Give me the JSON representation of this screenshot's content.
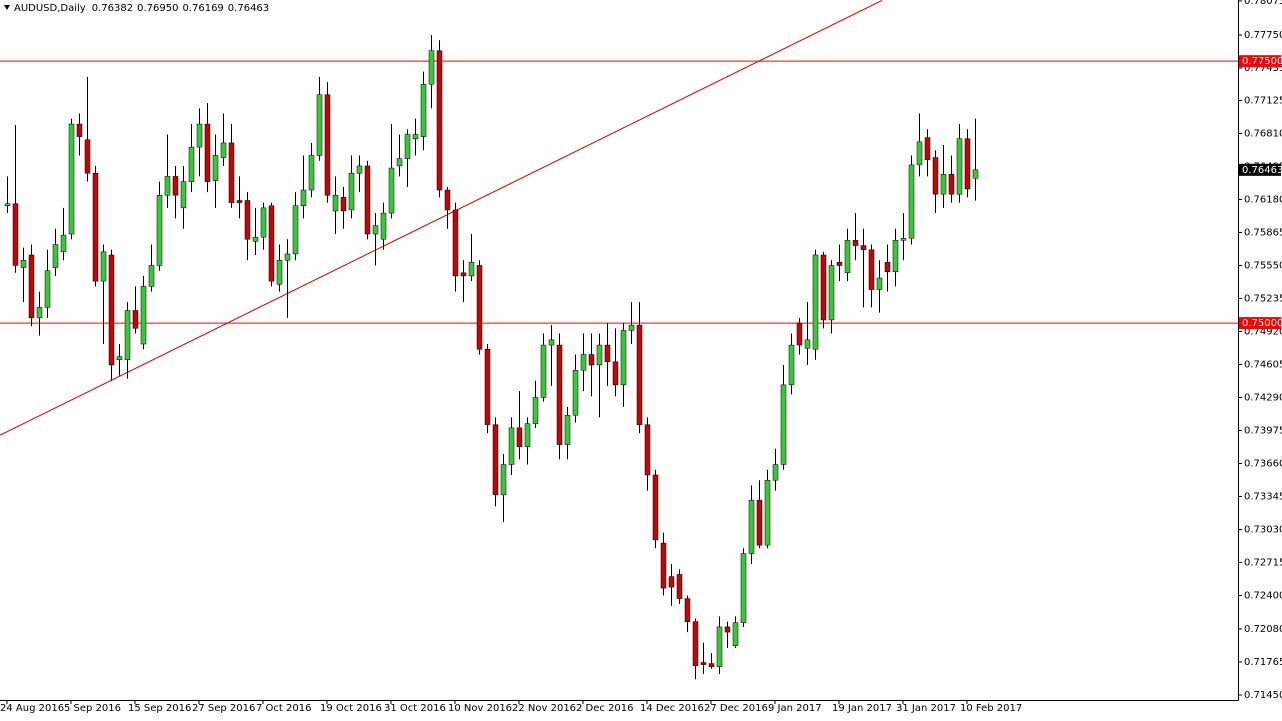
{
  "chart_data": {
    "type": "candlestick",
    "title": "AUDUSD,Daily",
    "categories": [
      "24 Aug 2016",
      null,
      null,
      null,
      null,
      null,
      null,
      null,
      "5 Sep 2016",
      null,
      null,
      null,
      null,
      null,
      null,
      null,
      "15 Sep 2016",
      null,
      null,
      null,
      null,
      null,
      null,
      null,
      "27 Sep 2016",
      null,
      null,
      null,
      null,
      null,
      null,
      null,
      "7 Oct 2016",
      null,
      null,
      null,
      null,
      null,
      null,
      null,
      "19 Oct 2016",
      null,
      null,
      null,
      null,
      null,
      null,
      null,
      "31 Oct 2016",
      null,
      null,
      null,
      null,
      null,
      null,
      null,
      "10 Nov 2016",
      null,
      null,
      null,
      null,
      null,
      null,
      null,
      "22 Nov 2016",
      null,
      null,
      null,
      null,
      null,
      null,
      null,
      "2 Dec 2016",
      null,
      null,
      null,
      null,
      null,
      null,
      null,
      "14 Dec 2016",
      null,
      null,
      null,
      null,
      null,
      null,
      null,
      "27 Dec 2016",
      null,
      null,
      null,
      null,
      null,
      null,
      null,
      "9 Jan 2017",
      null,
      null,
      null,
      null,
      null,
      null,
      null,
      "19 Jan 2017",
      null,
      null,
      null,
      null,
      null,
      null,
      null,
      "31 Jan 2017",
      null,
      null,
      null,
      null,
      null,
      null,
      null,
      "10 Feb 2017",
      null
    ],
    "open": [
      0.7612,
      0.7614,
      0.7553,
      0.7565,
      0.7505,
      0.7515,
      0.7553,
      0.7568,
      0.7585,
      0.769,
      0.7675,
      0.7643,
      0.754,
      0.7565,
      0.7465,
      0.7465,
      0.7512,
      0.748,
      0.7535,
      0.7555,
      0.7622,
      0.764,
      0.761,
      0.7635,
      0.7668,
      0.769,
      0.7636,
      0.7658,
      0.7672,
      0.7617,
      0.7617,
      0.7578,
      0.7582,
      0.7612,
      0.7537,
      0.756,
      0.7566,
      0.7612,
      0.7627,
      0.766,
      0.7718,
      0.7607,
      0.762,
      0.7608,
      0.7643,
      0.765,
      0.7585,
      0.758,
      0.7605,
      0.765,
      0.7657,
      0.7676,
      0.7678,
      0.7728,
      0.776,
      0.7627,
      0.7608,
      0.7548,
      0.7545,
      0.7555,
      0.7475,
      0.7403,
      0.7336,
      0.7365,
      0.74,
      0.7382,
      0.7404,
      0.7429,
      0.7479,
      0.7479,
      0.7384,
      0.7412,
      0.7455,
      0.747,
      0.746,
      0.7479,
      0.7463,
      0.7441,
      0.7493,
      0.7498,
      0.7403,
      0.7355,
      0.729,
      0.7258,
      0.726,
      0.7237,
      0.7215,
      0.7176,
      0.7175,
      0.7172,
      0.721,
      0.7192,
      0.7214,
      0.728,
      0.7331,
      0.7288,
      0.735,
      0.7365,
      0.7441,
      0.75,
      0.7476,
      0.7475,
      0.7565,
      0.7503,
      0.7558,
      0.7548,
      0.7579,
      0.7574,
      0.757,
      0.7532,
      0.7558,
      0.7549,
      0.7579,
      0.7581,
      0.7651,
      0.7677,
      0.7658,
      0.7623,
      0.7642,
      0.7623,
      0.7676,
      0.76382
    ],
    "high": [
      0.764,
      0.7689,
      0.7572,
      0.7575,
      0.753,
      0.757,
      0.759,
      0.761,
      0.7695,
      0.77,
      0.7735,
      0.765,
      0.7575,
      0.757,
      0.748,
      0.752,
      0.7535,
      0.7545,
      0.7575,
      0.7635,
      0.768,
      0.765,
      0.765,
      0.769,
      0.7705,
      0.771,
      0.768,
      0.77,
      0.769,
      0.764,
      0.7625,
      0.761,
      0.7615,
      0.7615,
      0.7575,
      0.758,
      0.7625,
      0.766,
      0.7672,
      0.7735,
      0.773,
      0.764,
      0.763,
      0.766,
      0.766,
      0.7655,
      0.7605,
      0.7615,
      0.769,
      0.768,
      0.7685,
      0.7695,
      0.774,
      0.7775,
      0.777,
      0.763,
      0.7615,
      0.756,
      0.7585,
      0.756,
      0.748,
      0.741,
      0.7375,
      0.741,
      0.7435,
      0.741,
      0.7445,
      0.749,
      0.7498,
      0.749,
      0.742,
      0.747,
      0.749,
      0.749,
      0.749,
      0.75,
      0.7495,
      0.75,
      0.752,
      0.752,
      0.741,
      0.736,
      0.73,
      0.727,
      0.7265,
      0.724,
      0.7218,
      0.7195,
      0.7185,
      0.722,
      0.7215,
      0.722,
      0.7285,
      0.7345,
      0.735,
      0.736,
      0.738,
      0.746,
      0.749,
      0.7505,
      0.752,
      0.757,
      0.7568,
      0.756,
      0.7575,
      0.759,
      0.7605,
      0.759,
      0.7575,
      0.756,
      0.7575,
      0.759,
      0.7605,
      0.766,
      0.77,
      0.7685,
      0.7665,
      0.767,
      0.766,
      0.769,
      0.7685,
      0.7695
    ],
    "low": [
      0.7605,
      0.7548,
      0.752,
      0.7497,
      0.7488,
      0.7505,
      0.7545,
      0.756,
      0.758,
      0.766,
      0.7635,
      0.7535,
      0.748,
      0.7445,
      0.745,
      0.7447,
      0.749,
      0.7475,
      0.753,
      0.755,
      0.761,
      0.76,
      0.759,
      0.7625,
      0.764,
      0.7625,
      0.761,
      0.765,
      0.761,
      0.76,
      0.756,
      0.7565,
      0.757,
      0.7535,
      0.753,
      0.7505,
      0.756,
      0.76,
      0.762,
      0.7655,
      0.7615,
      0.7585,
      0.759,
      0.76,
      0.7625,
      0.758,
      0.7555,
      0.757,
      0.76,
      0.764,
      0.763,
      0.766,
      0.7665,
      0.7705,
      0.762,
      0.759,
      0.753,
      0.752,
      0.754,
      0.747,
      0.7395,
      0.7325,
      0.731,
      0.7355,
      0.737,
      0.7365,
      0.74,
      0.7425,
      0.744,
      0.737,
      0.737,
      0.7405,
      0.7435,
      0.743,
      0.741,
      0.744,
      0.743,
      0.742,
      0.748,
      0.7395,
      0.734,
      0.7285,
      0.724,
      0.723,
      0.7232,
      0.7205,
      0.716,
      0.7165,
      0.717,
      0.7165,
      0.719,
      0.719,
      0.721,
      0.727,
      0.7285,
      0.7285,
      0.734,
      0.736,
      0.7432,
      0.747,
      0.746,
      0.7465,
      0.7495,
      0.749,
      0.754,
      0.754,
      0.756,
      0.7515,
      0.7515,
      0.751,
      0.753,
      0.7535,
      0.756,
      0.7575,
      0.764,
      0.764,
      0.7605,
      0.761,
      0.7615,
      0.7615,
      0.762,
      0.76169
    ],
    "close": [
      0.7614,
      0.7555,
      0.756,
      0.7505,
      0.7515,
      0.755,
      0.7575,
      0.7584,
      0.769,
      0.7678,
      0.7643,
      0.754,
      0.7568,
      0.746,
      0.7468,
      0.7512,
      0.7495,
      0.7535,
      0.7555,
      0.7622,
      0.764,
      0.7622,
      0.7635,
      0.7668,
      0.769,
      0.7635,
      0.766,
      0.7672,
      0.7615,
      0.7615,
      0.758,
      0.7582,
      0.761,
      0.754,
      0.756,
      0.7566,
      0.7612,
      0.7627,
      0.766,
      0.7718,
      0.7622,
      0.7622,
      0.7607,
      0.7643,
      0.765,
      0.7585,
      0.7593,
      0.7605,
      0.7648,
      0.7657,
      0.768,
      0.768,
      0.7728,
      0.776,
      0.7627,
      0.7608,
      0.7545,
      0.7545,
      0.7558,
      0.7475,
      0.7403,
      0.7336,
      0.7365,
      0.74,
      0.7382,
      0.7404,
      0.7429,
      0.7479,
      0.7484,
      0.7384,
      0.7412,
      0.7455,
      0.747,
      0.746,
      0.7479,
      0.7463,
      0.7441,
      0.7493,
      0.7498,
      0.7403,
      0.7355,
      0.7293,
      0.7247,
      0.7248,
      0.7237,
      0.7215,
      0.7173,
      0.7174,
      0.7172,
      0.721,
      0.7205,
      0.7214,
      0.728,
      0.7331,
      0.7288,
      0.735,
      0.7365,
      0.7441,
      0.7479,
      0.7479,
      0.7484,
      0.7565,
      0.7503,
      0.7555,
      0.7555,
      0.7579,
      0.7574,
      0.757,
      0.7532,
      0.7543,
      0.7549,
      0.7579,
      0.7581,
      0.7651,
      0.7673,
      0.7656,
      0.7623,
      0.7642,
      0.7623,
      0.7676,
      0.7628,
      0.76463
    ],
    "last_labels": {
      "open": "0.76382",
      "high": "0.76950",
      "low": "0.76169",
      "close": "0.76463"
    },
    "up_color": "#32cd32",
    "down_color": "#cc0000",
    "ylim": [
      0.71402,
      0.78084
    ],
    "yticks": [
      0.78075,
      {
        "value": 0.7775,
        "label": "0.77750"
      },
      0.77435,
      0.77125,
      {
        "value": 0.7681,
        "label": "0.76810"
      },
      0.76495,
      {
        "value": 0.7618,
        "label": "0.76180"
      },
      0.75865,
      {
        "value": 0.7555,
        "label": "0.75550"
      },
      0.75235,
      {
        "value": 0.7492,
        "label": "0.74920"
      },
      0.74605,
      {
        "value": 0.7429,
        "label": "0.74290"
      },
      0.73975,
      {
        "value": 0.7366,
        "label": "0.73660"
      },
      0.73345,
      {
        "value": 0.7303,
        "label": "0.73030"
      },
      0.72715,
      {
        "value": 0.724,
        "label": "0.72400"
      },
      {
        "value": 0.7208,
        "label": "0.72080"
      },
      0.71765,
      {
        "value": 0.7145,
        "label": "0.71450"
      }
    ],
    "grid": false,
    "hlines": [
      {
        "value": 0.775,
        "label": "0.77500",
        "color": "#ff0000"
      },
      {
        "value": 0.75,
        "label": "0.75000",
        "color": "#ff0000"
      }
    ],
    "trendline": {
      "x": [
        -0.875,
        109.375
      ],
      "y": [
        0.7393,
        0.7808
      ],
      "color": "#cc0000"
    }
  }
}
